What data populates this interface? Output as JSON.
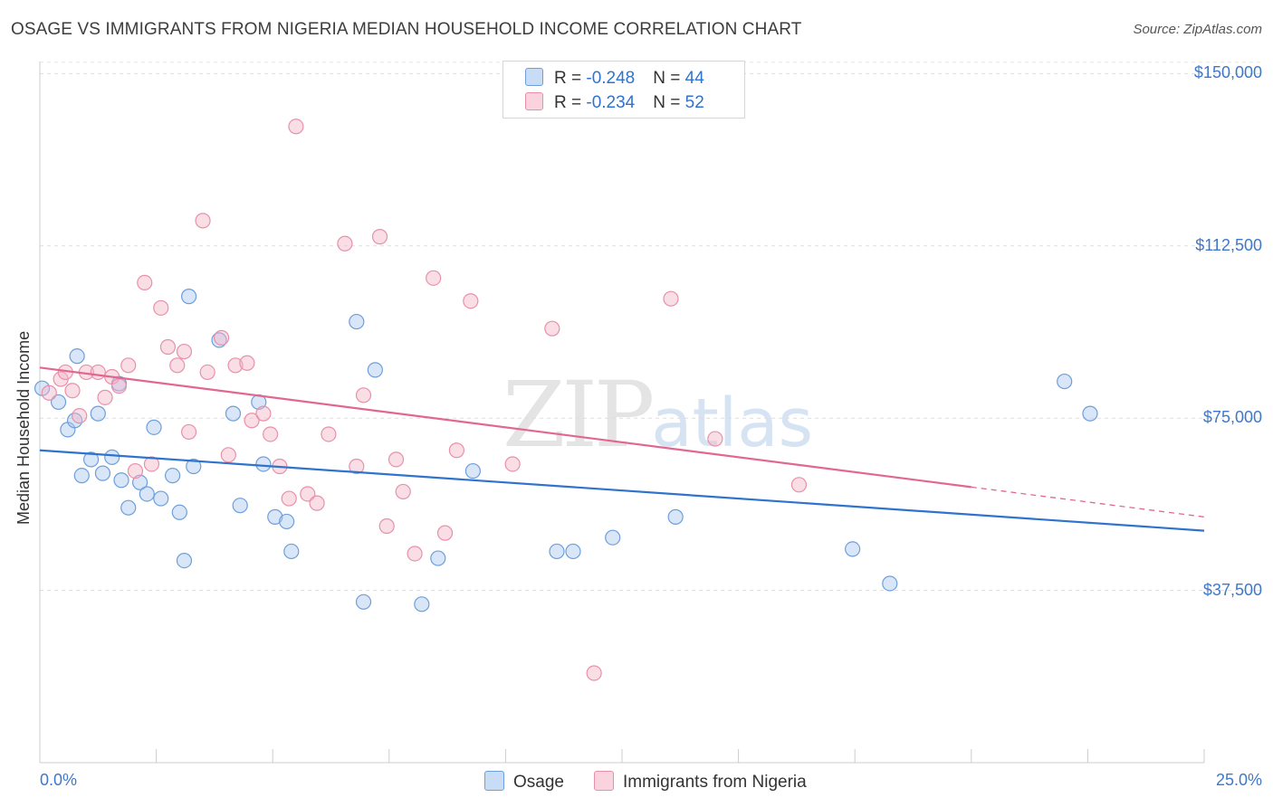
{
  "header": {
    "title": "OSAGE VS IMMIGRANTS FROM NIGERIA MEDIAN HOUSEHOLD INCOME CORRELATION CHART",
    "source": "Source: ZipAtlas.com"
  },
  "watermark": {
    "zip": "ZIP",
    "atlas": "atlas"
  },
  "legend": {
    "rows": [
      {
        "r_label": "R = ",
        "r_value": "-0.248",
        "n_label": "N = ",
        "n_value": "44",
        "color": "#a9c8ef"
      },
      {
        "r_label": "R = ",
        "r_value": "-0.234",
        "n_label": "N = ",
        "n_value": "52",
        "color": "#f5b6c8"
      }
    ]
  },
  "bottom_legend": {
    "series1": "Osage",
    "series2": "Immigrants from Nigeria"
  },
  "chart_data": {
    "type": "scatter",
    "title": "OSAGE VS IMMIGRANTS FROM NIGERIA MEDIAN HOUSEHOLD INCOME CORRELATION CHART",
    "xlabel": "",
    "ylabel": "Median Household Income",
    "xlim": [
      0,
      25
    ],
    "ylim": [
      0,
      155000
    ],
    "x_tick_labels": [
      "0.0%",
      "25.0%"
    ],
    "y_ticks": [
      37500,
      75000,
      112500,
      150000
    ],
    "y_tick_labels": [
      "$37,500",
      "$75,000",
      "$112,500",
      "$150,000"
    ],
    "grid": true,
    "series": [
      {
        "name": "Osage",
        "color": "#a9c8ef",
        "stroke": "#6d9fdc",
        "trend_color": "#2f73cf",
        "trend": {
          "x0": 0.0,
          "y0": 68000,
          "x1": 25.0,
          "y1": 50500
        },
        "points": [
          [
            0.05,
            81500
          ],
          [
            0.4,
            78500
          ],
          [
            0.6,
            72500
          ],
          [
            0.75,
            74500
          ],
          [
            0.8,
            88500
          ],
          [
            0.9,
            62500
          ],
          [
            1.1,
            66000
          ],
          [
            1.25,
            76000
          ],
          [
            1.35,
            63000
          ],
          [
            1.55,
            66500
          ],
          [
            1.7,
            82500
          ],
          [
            1.75,
            61500
          ],
          [
            1.9,
            55500
          ],
          [
            2.15,
            61000
          ],
          [
            2.3,
            58500
          ],
          [
            2.45,
            73000
          ],
          [
            2.6,
            57500
          ],
          [
            2.85,
            62500
          ],
          [
            3.0,
            54500
          ],
          [
            3.1,
            44000
          ],
          [
            3.2,
            101500
          ],
          [
            3.3,
            64500
          ],
          [
            3.85,
            92000
          ],
          [
            4.15,
            76000
          ],
          [
            4.3,
            56000
          ],
          [
            4.7,
            78500
          ],
          [
            4.8,
            65000
          ],
          [
            5.05,
            53500
          ],
          [
            5.3,
            52500
          ],
          [
            5.4,
            46000
          ],
          [
            6.8,
            96000
          ],
          [
            6.95,
            35000
          ],
          [
            7.2,
            85500
          ],
          [
            8.2,
            34500
          ],
          [
            8.55,
            44500
          ],
          [
            9.3,
            63500
          ],
          [
            11.1,
            46000
          ],
          [
            11.45,
            46000
          ],
          [
            12.3,
            49000
          ],
          [
            13.65,
            53500
          ],
          [
            17.45,
            46500
          ],
          [
            18.25,
            39000
          ],
          [
            22.0,
            83000
          ],
          [
            22.55,
            76000
          ]
        ]
      },
      {
        "name": "Immigrants from Nigeria",
        "color": "#f5b6c8",
        "stroke": "#e890aa",
        "trend_color": "#e2678f",
        "trend": {
          "x0": 0.0,
          "y0": 86000,
          "x1": 20.0,
          "y1": 60000
        },
        "trend_dashed": {
          "x0": 20.0,
          "y0": 60000,
          "x1": 25.0,
          "y1": 53500
        },
        "points": [
          [
            0.2,
            80500
          ],
          [
            0.45,
            83500
          ],
          [
            0.55,
            85000
          ],
          [
            0.7,
            81000
          ],
          [
            0.85,
            75500
          ],
          [
            1.0,
            85000
          ],
          [
            1.25,
            85000
          ],
          [
            1.4,
            79500
          ],
          [
            1.55,
            84000
          ],
          [
            1.7,
            82000
          ],
          [
            1.9,
            86500
          ],
          [
            2.05,
            63500
          ],
          [
            2.25,
            104500
          ],
          [
            2.4,
            65000
          ],
          [
            2.6,
            99000
          ],
          [
            2.75,
            90500
          ],
          [
            2.95,
            86500
          ],
          [
            3.1,
            89500
          ],
          [
            3.2,
            72000
          ],
          [
            3.5,
            118000
          ],
          [
            3.6,
            85000
          ],
          [
            3.9,
            92500
          ],
          [
            4.05,
            67000
          ],
          [
            4.2,
            86500
          ],
          [
            4.45,
            87000
          ],
          [
            4.55,
            74500
          ],
          [
            4.8,
            76000
          ],
          [
            4.95,
            71500
          ],
          [
            5.15,
            64500
          ],
          [
            5.35,
            57500
          ],
          [
            5.5,
            138500
          ],
          [
            5.75,
            58500
          ],
          [
            5.95,
            56500
          ],
          [
            6.2,
            71500
          ],
          [
            6.55,
            113000
          ],
          [
            6.8,
            64500
          ],
          [
            6.95,
            80000
          ],
          [
            7.3,
            114500
          ],
          [
            7.45,
            51500
          ],
          [
            7.65,
            66000
          ],
          [
            7.8,
            59000
          ],
          [
            8.05,
            45500
          ],
          [
            8.45,
            105500
          ],
          [
            8.7,
            50000
          ],
          [
            8.95,
            68000
          ],
          [
            9.25,
            100500
          ],
          [
            10.15,
            65000
          ],
          [
            11.0,
            94500
          ],
          [
            11.9,
            19500
          ],
          [
            13.55,
            101000
          ],
          [
            14.5,
            70500
          ],
          [
            16.3,
            60500
          ]
        ]
      }
    ]
  }
}
